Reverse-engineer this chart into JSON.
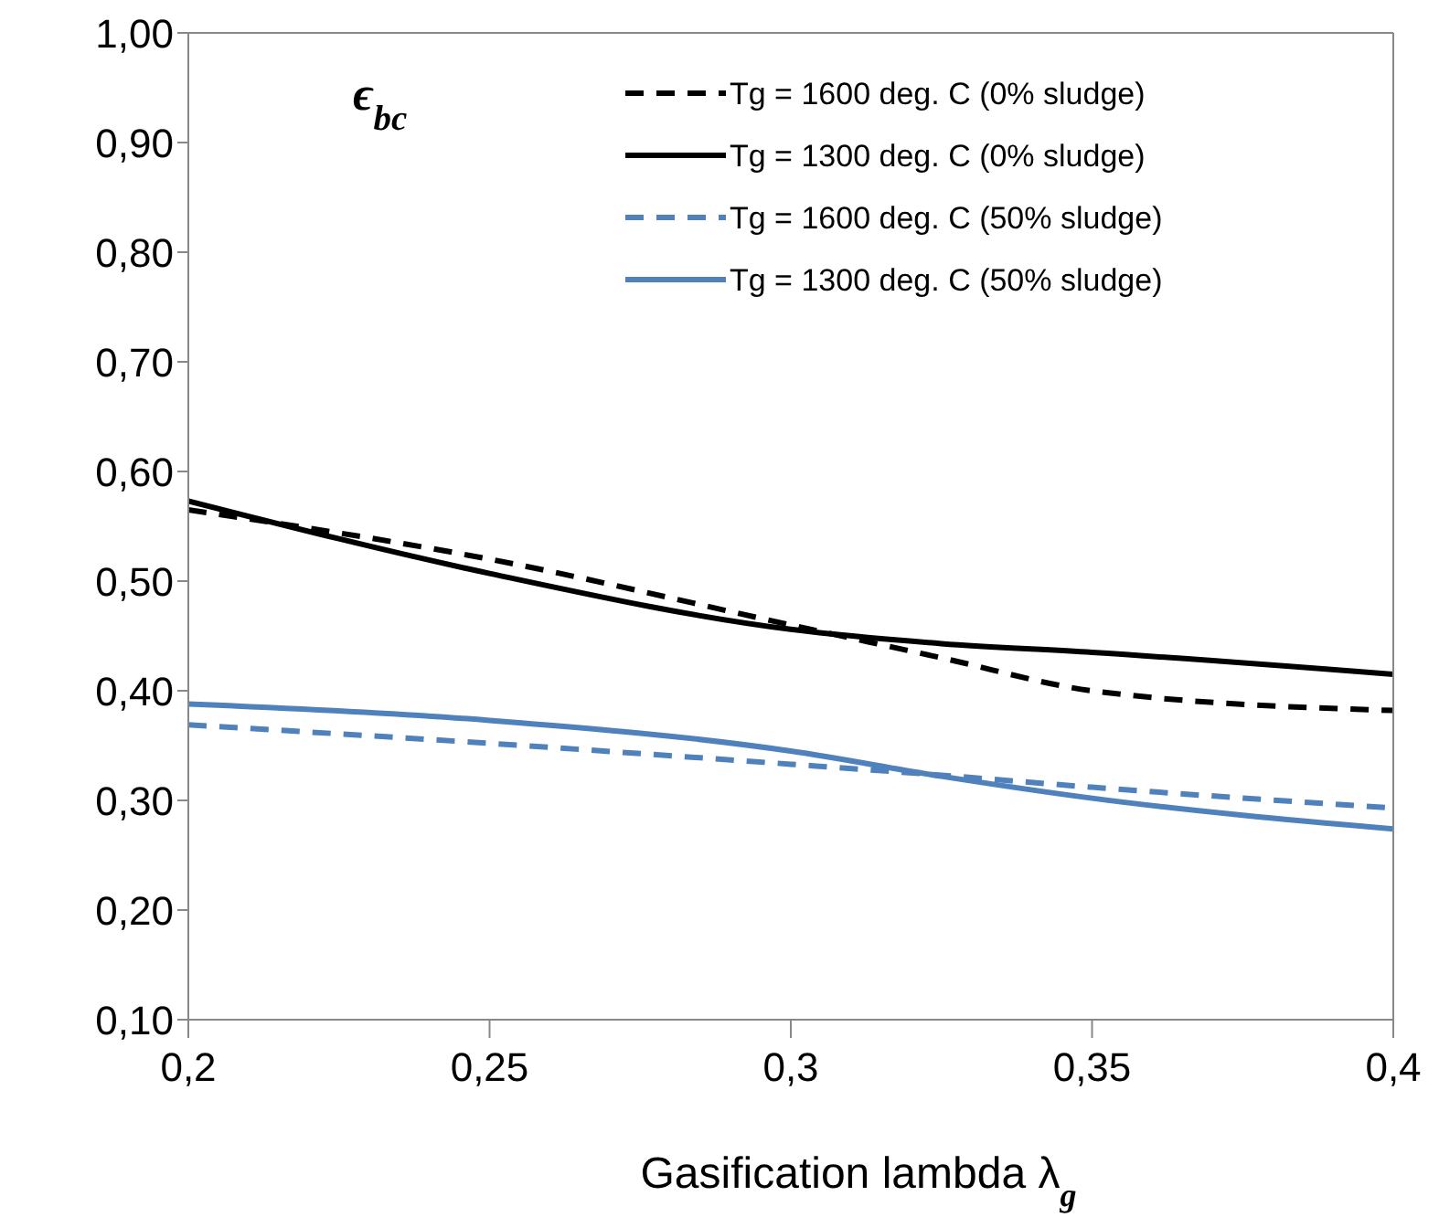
{
  "chart_data": {
    "type": "line",
    "ylabel": "ϵ$_{bc}$",
    "xlabel": "Gasification lambda λ$_{g}$",
    "x": [
      0.2,
      0.25,
      0.3,
      0.325,
      0.35,
      0.4
    ],
    "series": [
      {
        "name": "Tg = 1600 deg. C (0% sludge)",
        "color": "#000000",
        "line_style": "dashed",
        "values": [
          0.565,
          0.52,
          0.46,
          0.43,
          0.4,
          0.382
        ]
      },
      {
        "name": "Tg = 1300 deg. C (0% sludge)",
        "color": "#000000",
        "line_style": "solid",
        "values": [
          0.573,
          0.507,
          0.456,
          0.443,
          0.435,
          0.415
        ]
      },
      {
        "name": "Tg = 1600 deg. C (50% sludge)",
        "color": "#4f81bd",
        "line_style": "dashed",
        "values": [
          0.369,
          0.352,
          0.333,
          0.323,
          0.312,
          0.293
        ]
      },
      {
        "name": "Tg = 1300 deg. C (50% sludge)",
        "color": "#4f81bd",
        "line_style": "solid",
        "values": [
          0.388,
          0.373,
          0.345,
          0.322,
          0.302,
          0.274
        ]
      }
    ],
    "xlim": [
      0.2,
      0.4
    ],
    "xticks": [
      {
        "value": 0.2,
        "label": "0,2"
      },
      {
        "value": 0.25,
        "label": "0,25"
      },
      {
        "value": 0.3,
        "label": "0,3"
      },
      {
        "value": 0.35,
        "label": "0,35"
      },
      {
        "value": 0.4,
        "label": "0,4"
      }
    ],
    "ylim": [
      0.1,
      1.0
    ],
    "yticks": [
      {
        "value": 0.1,
        "label": "0,10"
      },
      {
        "value": 0.2,
        "label": "0,20"
      },
      {
        "value": 0.3,
        "label": "0,30"
      },
      {
        "value": 0.4,
        "label": "0,40"
      },
      {
        "value": 0.5,
        "label": "0,50"
      },
      {
        "value": 0.6,
        "label": "0,60"
      },
      {
        "value": 0.7,
        "label": "0,70"
      },
      {
        "value": 0.8,
        "label": "0,80"
      },
      {
        "value": 0.9,
        "label": "0,90"
      },
      {
        "value": 1.0,
        "label": "1,00"
      }
    ],
    "grid": false,
    "legend": "top right",
    "marker": "none"
  }
}
